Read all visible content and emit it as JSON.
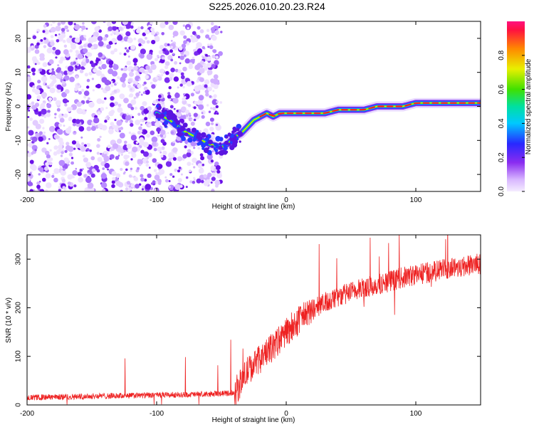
{
  "figure_title": "S225.2026.010.20.23.R24",
  "colors": {
    "noise": "#7b2cf0",
    "ridge_hot": "#ff2020",
    "snr_line": "#ee2222",
    "axis": "#000000"
  },
  "chart_data": [
    {
      "type": "heatmap",
      "name": "spectrogram",
      "xlabel": "Height of straight line (km)",
      "ylabel": "Frequency (Hz)",
      "xlim": [
        -200,
        150
      ],
      "ylim": [
        -25,
        25
      ],
      "xticks": [
        -200,
        -100,
        0,
        100
      ],
      "yticks": [
        -20,
        -10,
        0,
        10,
        20
      ],
      "xtick_labels": [
        "-200",
        "-100",
        "0",
        "100"
      ],
      "ytick_labels": [
        "-20",
        "-10",
        "0",
        "10",
        "20"
      ],
      "noise_region_x": [
        -200,
        -50
      ],
      "ridge": {
        "description": "dominant frequency ridge",
        "x": [
          -100,
          -90,
          -80,
          -70,
          -60,
          -50,
          -45,
          -40,
          -35,
          -30,
          -25,
          -20,
          -15,
          -10,
          -5,
          0,
          10,
          20,
          30,
          40,
          50,
          60,
          70,
          80,
          90,
          100,
          110,
          120,
          130,
          140,
          150
        ],
        "freq": [
          -2,
          -4,
          -7,
          -9,
          -11,
          -12,
          -11,
          -9,
          -8,
          -6,
          -4,
          -3,
          -2,
          -3,
          -2,
          -2,
          -2,
          -2,
          -2,
          -1,
          -1,
          -1,
          0,
          0,
          0,
          1,
          1,
          1,
          1,
          1,
          1
        ]
      },
      "colorbar": {
        "label": "Normalized spectral amplitude",
        "range": [
          0,
          1
        ],
        "ticks": [
          0.0,
          0.2,
          0.4,
          0.6,
          0.8
        ],
        "tick_labels": [
          "0.0",
          "0.2",
          "0.4",
          "0.6",
          "0.8"
        ]
      }
    },
    {
      "type": "line",
      "name": "snr",
      "xlabel": "Height of straight line (km)",
      "ylabel": "SNR (10 * v/v)",
      "xlim": [
        -200,
        150
      ],
      "ylim": [
        0,
        350
      ],
      "xticks": [
        -200,
        -100,
        0,
        100
      ],
      "yticks": [
        0,
        100,
        200,
        300
      ],
      "xtick_labels": [
        "-200",
        "-100",
        "0",
        "100"
      ],
      "ytick_labels": [
        "0",
        "100",
        "200",
        "300"
      ],
      "series": [
        {
          "name": "SNR",
          "trend_x": [
            -200,
            -150,
            -100,
            -60,
            -40,
            -35,
            -30,
            -20,
            -10,
            0,
            10,
            20,
            30,
            40,
            50,
            60,
            70,
            80,
            90,
            100,
            110,
            120,
            130,
            140,
            150
          ],
          "trend_y": [
            15,
            18,
            20,
            22,
            25,
            45,
            70,
            95,
            120,
            150,
            175,
            195,
            210,
            222,
            232,
            240,
            248,
            255,
            262,
            268,
            273,
            278,
            283,
            287,
            290
          ]
        }
      ]
    }
  ]
}
